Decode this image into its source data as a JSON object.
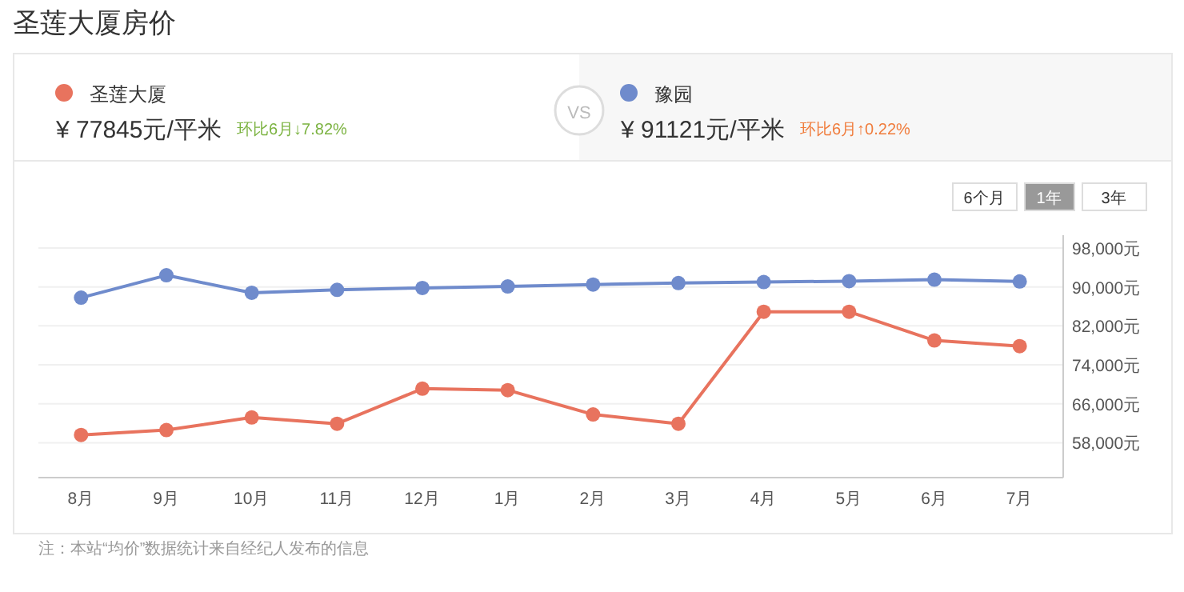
{
  "chart_data": {
    "type": "line",
    "title": "圣莲大厦房价",
    "categories": [
      "8月",
      "9月",
      "10月",
      "11月",
      "12月",
      "1月",
      "2月",
      "3月",
      "4月",
      "5月",
      "6月",
      "7月"
    ],
    "series": [
      {
        "name": "圣莲大厦",
        "color": "#e8735e",
        "values": [
          59600,
          60600,
          63200,
          61900,
          69100,
          68800,
          63800,
          61900,
          84900,
          84900,
          79000,
          77845
        ]
      },
      {
        "name": "豫园",
        "color": "#6f8bcc",
        "values": [
          87800,
          92400,
          88800,
          89400,
          89800,
          90100,
          90500,
          90800,
          91000,
          91200,
          91500,
          91121
        ]
      }
    ],
    "ylim": [
      51000,
      98000
    ],
    "yticks": [
      {
        "value": 58000,
        "label": "58,000元"
      },
      {
        "value": 66000,
        "label": "66,000元"
      },
      {
        "value": 74000,
        "label": "74,000元"
      },
      {
        "value": 82000,
        "label": "82,000元"
      },
      {
        "value": 90000,
        "label": "90,000元"
      },
      {
        "value": 98000,
        "label": "98,000元"
      }
    ],
    "grid": "y",
    "legend": "top",
    "marker": "circle",
    "line_style": "solid",
    "annotations": [
      "¥ 77845元/平米",
      "环比6月↓7.82%",
      "VS",
      "¥ 91121元/平米",
      "环比6月↑0.22%",
      "6个月",
      "1年",
      "3年",
      "注：本站“均价”数据统计来自经纪人发布的信息"
    ]
  }
}
